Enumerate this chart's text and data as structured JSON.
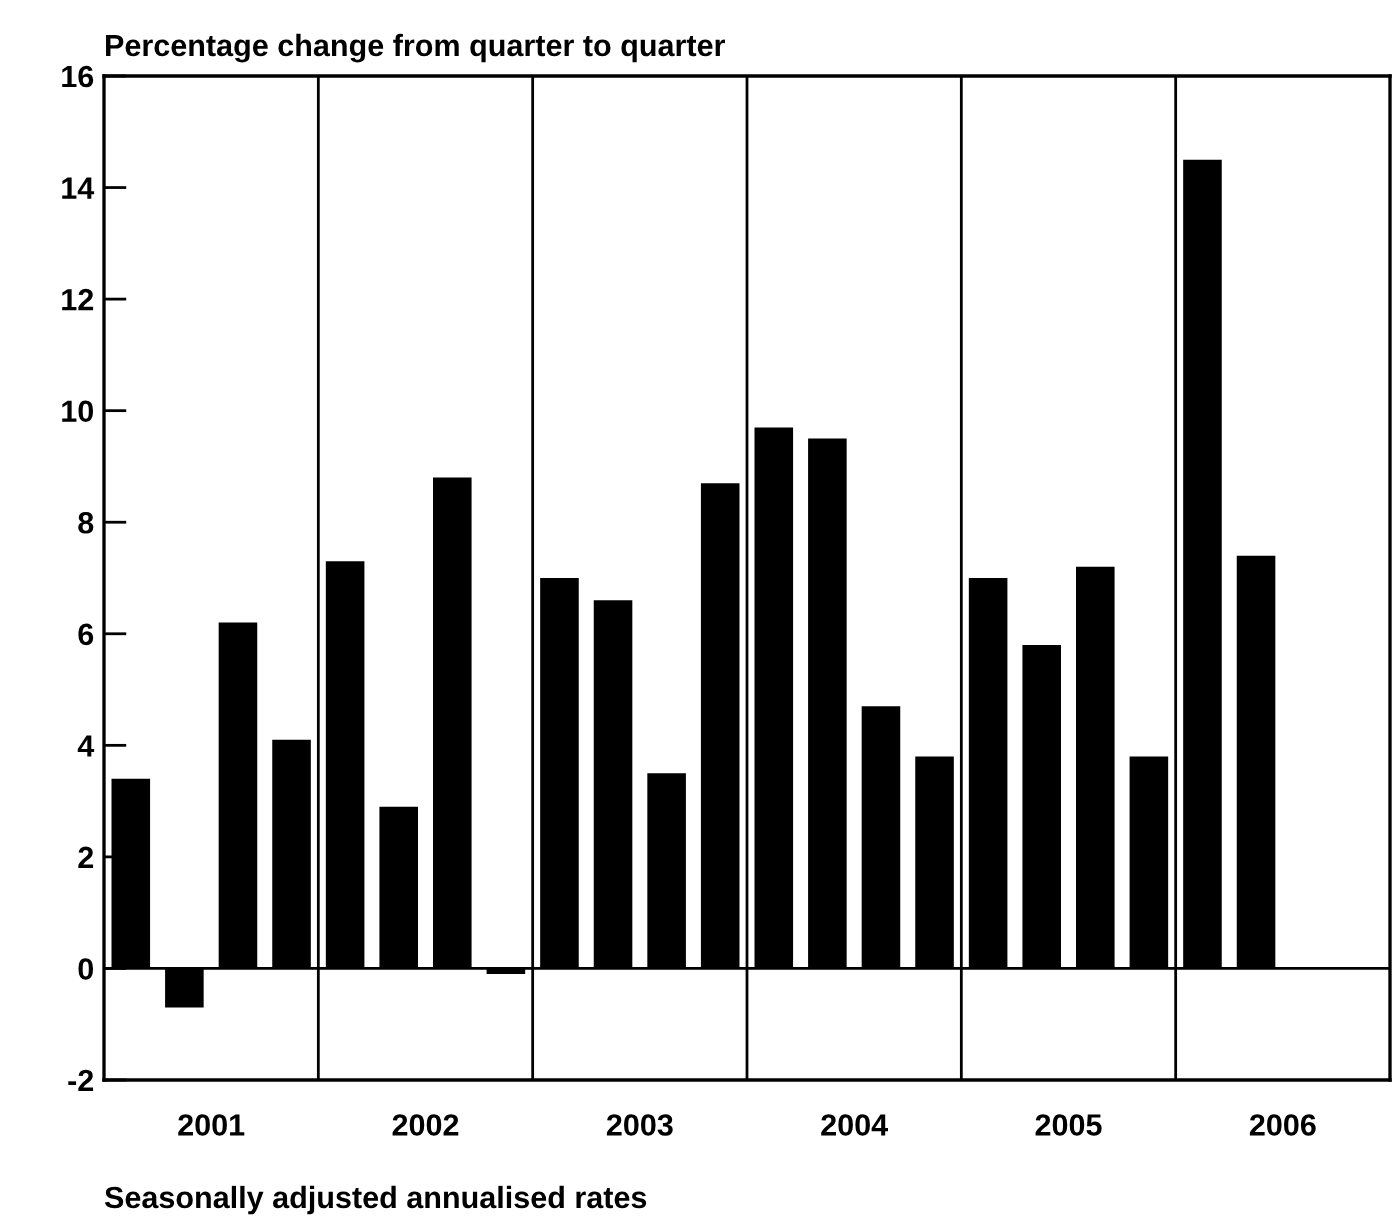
{
  "chart_data": {
    "type": "bar",
    "title": "Percentage change from quarter to quarter",
    "annotations": [
      "Seasonally adjusted annualised rates"
    ],
    "x": [
      2001.125,
      2001.375,
      2001.625,
      2001.875,
      2002.125,
      2002.375,
      2002.625,
      2002.875,
      2003.125,
      2003.375,
      2003.625,
      2003.875,
      2004.125,
      2004.375,
      2004.625,
      2004.875,
      2005.125,
      2005.375,
      2005.625,
      2005.875,
      2006.125,
      2006.375
    ],
    "values": [
      3.4,
      -0.7,
      6.2,
      4.1,
      7.3,
      2.9,
      8.8,
      -0.1,
      7.0,
      6.6,
      3.5,
      8.7,
      9.7,
      9.5,
      4.7,
      3.8,
      7.0,
      5.8,
      7.2,
      3.8,
      14.5,
      7.4
    ],
    "color": "#000000",
    "xlim": [
      2001,
      2007
    ],
    "xticks": [
      {
        "value": 2001.5,
        "label": "2001"
      },
      {
        "value": 2002.5,
        "label": "2002"
      },
      {
        "value": 2003.5,
        "label": "2003"
      },
      {
        "value": 2004.5,
        "label": "2004"
      },
      {
        "value": 2005.5,
        "label": "2005"
      },
      {
        "value": 2006.5,
        "label": "2006"
      }
    ],
    "ylim": [
      -2,
      16
    ],
    "yticks": [
      -2,
      0,
      2,
      4,
      6,
      8,
      10,
      12,
      14,
      16
    ],
    "ref_lines": [
      {
        "axis": "y",
        "value": 0,
        "color": "#000000"
      },
      {
        "axis": "x",
        "value": 2002,
        "color": "#000000"
      },
      {
        "axis": "x",
        "value": 2003,
        "color": "#000000"
      },
      {
        "axis": "x",
        "value": 2004,
        "color": "#000000"
      },
      {
        "axis": "x",
        "value": 2005,
        "color": "#000000"
      },
      {
        "axis": "x",
        "value": 2006,
        "color": "#000000"
      }
    ]
  }
}
